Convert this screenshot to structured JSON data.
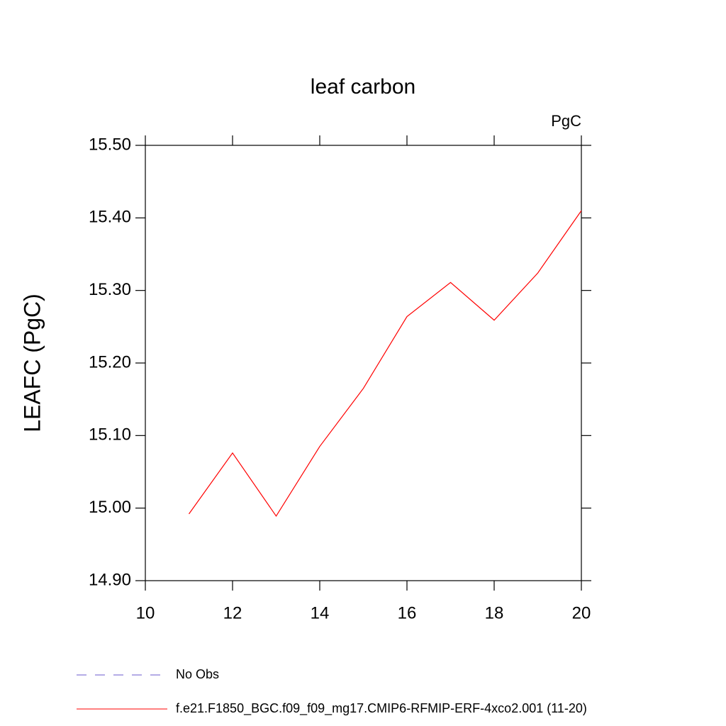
{
  "chart_data": {
    "type": "line",
    "title": "leaf carbon",
    "units": "PgC",
    "y_label": "LEAFC  (PgC)",
    "x": [
      11,
      12,
      13,
      14,
      15,
      16,
      17,
      18,
      19,
      20
    ],
    "series": [
      {
        "name": "f.e21.F1850_BGC.f09_f09_mg17.CMIP6-RFMIP-ERF-4xco2.001 (11-20)",
        "color": "#ff0000",
        "values": [
          14.992,
          15.076,
          14.989,
          15.085,
          15.165,
          15.264,
          15.311,
          15.259,
          15.324,
          15.41
        ]
      }
    ],
    "legend_entries": [
      {
        "name": "No Obs",
        "color": "#6a5acd",
        "dashed": true
      }
    ],
    "xlim": [
      10,
      20
    ],
    "xticks": [
      10,
      12,
      14,
      16,
      18,
      20
    ],
    "ylim": [
      14.9,
      15.5
    ],
    "yticks": [
      {
        "value": 14.9,
        "label": "14.90"
      },
      {
        "value": 15.0,
        "label": "15.00"
      },
      {
        "value": 15.1,
        "label": "15.10"
      },
      {
        "value": 15.2,
        "label": "15.20"
      },
      {
        "value": 15.3,
        "label": "15.30"
      },
      {
        "value": 15.4,
        "label": "15.40"
      },
      {
        "value": 15.5,
        "label": "15.50"
      }
    ],
    "grid": false
  }
}
